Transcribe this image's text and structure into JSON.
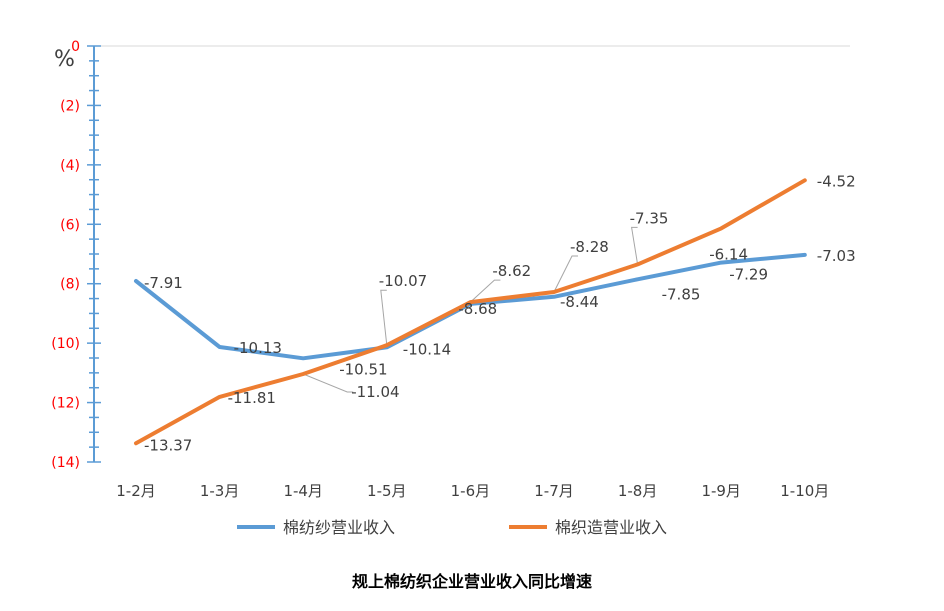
{
  "chart_data": {
    "type": "line",
    "title": "规上棉纺织企业营业收入同比增速",
    "unit_label": "%",
    "categories": [
      "1-2月",
      "1-3月",
      "1-4月",
      "1-5月",
      "1-6月",
      "1-7月",
      "1-8月",
      "1-9月",
      "1-10月"
    ],
    "ylim": [
      -14,
      0
    ],
    "y_ticks": [
      {
        "value": 0,
        "label": "0"
      },
      {
        "value": -2,
        "label": "(2)"
      },
      {
        "value": -4,
        "label": "(4)"
      },
      {
        "value": -6,
        "label": "(6)"
      },
      {
        "value": -8,
        "label": "(8)"
      },
      {
        "value": -10,
        "label": "(10)"
      },
      {
        "value": -12,
        "label": "(12)"
      },
      {
        "value": -14,
        "label": "(14)"
      }
    ],
    "grid": false,
    "legend_position": "bottom",
    "series": [
      {
        "name": "棉纺纱营业收入",
        "color": "#5b9bd5",
        "values": [
          -7.91,
          -10.13,
          -10.51,
          -10.14,
          -8.68,
          -8.44,
          -7.85,
          -7.29,
          -7.03
        ],
        "labels": [
          "-7.91",
          "-10.13",
          "-10.51",
          "-10.14",
          "-8.68",
          "-8.44",
          "-7.85",
          "-7.29",
          "-7.03"
        ]
      },
      {
        "name": "棉织造营业收入",
        "color": "#ed7d31",
        "values": [
          -13.37,
          -11.81,
          -11.04,
          -10.07,
          -8.62,
          -8.28,
          -7.35,
          -6.14,
          -4.52
        ],
        "labels": [
          "-13.37",
          "-11.81",
          "-11.04",
          "-10.07",
          "-8.62",
          "-8.28",
          "-7.35",
          "-6.14",
          "-4.52"
        ]
      }
    ]
  }
}
